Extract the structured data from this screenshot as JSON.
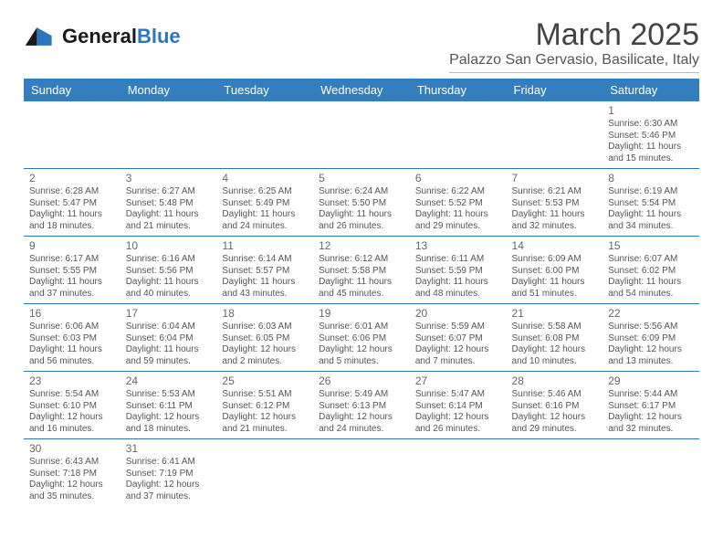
{
  "brand": {
    "name_a": "General",
    "name_b": "Blue"
  },
  "title": "March 2025",
  "location": "Palazzo San Gervasio, Basilicate, Italy",
  "colors": {
    "header_bg": "#337ebf",
    "header_fg": "#ffffff",
    "rule": "#2d76bb",
    "text": "#555555"
  },
  "days": [
    "Sunday",
    "Monday",
    "Tuesday",
    "Wednesday",
    "Thursday",
    "Friday",
    "Saturday"
  ],
  "weeks": [
    [
      null,
      null,
      null,
      null,
      null,
      null,
      {
        "n": "1",
        "sr": "Sunrise: 6:30 AM",
        "ss": "Sunset: 5:46 PM",
        "dl": "Daylight: 11 hours and 15 minutes."
      }
    ],
    [
      {
        "n": "2",
        "sr": "Sunrise: 6:28 AM",
        "ss": "Sunset: 5:47 PM",
        "dl": "Daylight: 11 hours and 18 minutes."
      },
      {
        "n": "3",
        "sr": "Sunrise: 6:27 AM",
        "ss": "Sunset: 5:48 PM",
        "dl": "Daylight: 11 hours and 21 minutes."
      },
      {
        "n": "4",
        "sr": "Sunrise: 6:25 AM",
        "ss": "Sunset: 5:49 PM",
        "dl": "Daylight: 11 hours and 24 minutes."
      },
      {
        "n": "5",
        "sr": "Sunrise: 6:24 AM",
        "ss": "Sunset: 5:50 PM",
        "dl": "Daylight: 11 hours and 26 minutes."
      },
      {
        "n": "6",
        "sr": "Sunrise: 6:22 AM",
        "ss": "Sunset: 5:52 PM",
        "dl": "Daylight: 11 hours and 29 minutes."
      },
      {
        "n": "7",
        "sr": "Sunrise: 6:21 AM",
        "ss": "Sunset: 5:53 PM",
        "dl": "Daylight: 11 hours and 32 minutes."
      },
      {
        "n": "8",
        "sr": "Sunrise: 6:19 AM",
        "ss": "Sunset: 5:54 PM",
        "dl": "Daylight: 11 hours and 34 minutes."
      }
    ],
    [
      {
        "n": "9",
        "sr": "Sunrise: 6:17 AM",
        "ss": "Sunset: 5:55 PM",
        "dl": "Daylight: 11 hours and 37 minutes."
      },
      {
        "n": "10",
        "sr": "Sunrise: 6:16 AM",
        "ss": "Sunset: 5:56 PM",
        "dl": "Daylight: 11 hours and 40 minutes."
      },
      {
        "n": "11",
        "sr": "Sunrise: 6:14 AM",
        "ss": "Sunset: 5:57 PM",
        "dl": "Daylight: 11 hours and 43 minutes."
      },
      {
        "n": "12",
        "sr": "Sunrise: 6:12 AM",
        "ss": "Sunset: 5:58 PM",
        "dl": "Daylight: 11 hours and 45 minutes."
      },
      {
        "n": "13",
        "sr": "Sunrise: 6:11 AM",
        "ss": "Sunset: 5:59 PM",
        "dl": "Daylight: 11 hours and 48 minutes."
      },
      {
        "n": "14",
        "sr": "Sunrise: 6:09 AM",
        "ss": "Sunset: 6:00 PM",
        "dl": "Daylight: 11 hours and 51 minutes."
      },
      {
        "n": "15",
        "sr": "Sunrise: 6:07 AM",
        "ss": "Sunset: 6:02 PM",
        "dl": "Daylight: 11 hours and 54 minutes."
      }
    ],
    [
      {
        "n": "16",
        "sr": "Sunrise: 6:06 AM",
        "ss": "Sunset: 6:03 PM",
        "dl": "Daylight: 11 hours and 56 minutes."
      },
      {
        "n": "17",
        "sr": "Sunrise: 6:04 AM",
        "ss": "Sunset: 6:04 PM",
        "dl": "Daylight: 11 hours and 59 minutes."
      },
      {
        "n": "18",
        "sr": "Sunrise: 6:03 AM",
        "ss": "Sunset: 6:05 PM",
        "dl": "Daylight: 12 hours and 2 minutes."
      },
      {
        "n": "19",
        "sr": "Sunrise: 6:01 AM",
        "ss": "Sunset: 6:06 PM",
        "dl": "Daylight: 12 hours and 5 minutes."
      },
      {
        "n": "20",
        "sr": "Sunrise: 5:59 AM",
        "ss": "Sunset: 6:07 PM",
        "dl": "Daylight: 12 hours and 7 minutes."
      },
      {
        "n": "21",
        "sr": "Sunrise: 5:58 AM",
        "ss": "Sunset: 6:08 PM",
        "dl": "Daylight: 12 hours and 10 minutes."
      },
      {
        "n": "22",
        "sr": "Sunrise: 5:56 AM",
        "ss": "Sunset: 6:09 PM",
        "dl": "Daylight: 12 hours and 13 minutes."
      }
    ],
    [
      {
        "n": "23",
        "sr": "Sunrise: 5:54 AM",
        "ss": "Sunset: 6:10 PM",
        "dl": "Daylight: 12 hours and 16 minutes."
      },
      {
        "n": "24",
        "sr": "Sunrise: 5:53 AM",
        "ss": "Sunset: 6:11 PM",
        "dl": "Daylight: 12 hours and 18 minutes."
      },
      {
        "n": "25",
        "sr": "Sunrise: 5:51 AM",
        "ss": "Sunset: 6:12 PM",
        "dl": "Daylight: 12 hours and 21 minutes."
      },
      {
        "n": "26",
        "sr": "Sunrise: 5:49 AM",
        "ss": "Sunset: 6:13 PM",
        "dl": "Daylight: 12 hours and 24 minutes."
      },
      {
        "n": "27",
        "sr": "Sunrise: 5:47 AM",
        "ss": "Sunset: 6:14 PM",
        "dl": "Daylight: 12 hours and 26 minutes."
      },
      {
        "n": "28",
        "sr": "Sunrise: 5:46 AM",
        "ss": "Sunset: 6:16 PM",
        "dl": "Daylight: 12 hours and 29 minutes."
      },
      {
        "n": "29",
        "sr": "Sunrise: 5:44 AM",
        "ss": "Sunset: 6:17 PM",
        "dl": "Daylight: 12 hours and 32 minutes."
      }
    ],
    [
      {
        "n": "30",
        "sr": "Sunrise: 6:43 AM",
        "ss": "Sunset: 7:18 PM",
        "dl": "Daylight: 12 hours and 35 minutes."
      },
      {
        "n": "31",
        "sr": "Sunrise: 6:41 AM",
        "ss": "Sunset: 7:19 PM",
        "dl": "Daylight: 12 hours and 37 minutes."
      },
      null,
      null,
      null,
      null,
      null
    ]
  ]
}
